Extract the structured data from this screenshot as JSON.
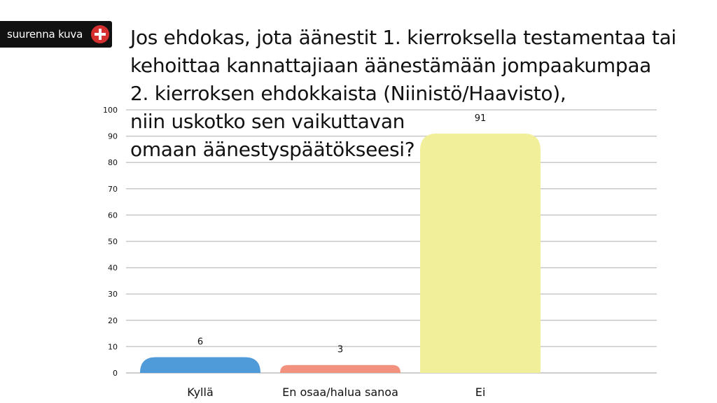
{
  "zoom_badge": {
    "label": "suurenna kuva",
    "icon": "plus-circle-icon",
    "icon_color": "#d62f2f"
  },
  "chart_data": {
    "type": "bar",
    "title_lines": [
      "Jos ehdokas, jota äänestit 1. kierroksella testamentaa tai",
      "kehoittaa kannattajiaan äänestämään jompaakumpaa",
      "2. kierroksen ehdokkaista (Niinistö/Haavisto),",
      "niin uskotko sen vaikuttavan",
      "omaan äänestyspäätökseesi?"
    ],
    "categories": [
      "Kyllä",
      "En osaa/halua sanoa",
      "Ei"
    ],
    "values": [
      6,
      3,
      91
    ],
    "colors": [
      "#4f9ad8",
      "#f3917f",
      "#f2ef9b"
    ],
    "ylim": [
      0,
      100
    ],
    "yticks": [
      0,
      10,
      20,
      30,
      40,
      50,
      60,
      70,
      80,
      90,
      100
    ],
    "grid": true,
    "xlabel": "",
    "ylabel": ""
  }
}
